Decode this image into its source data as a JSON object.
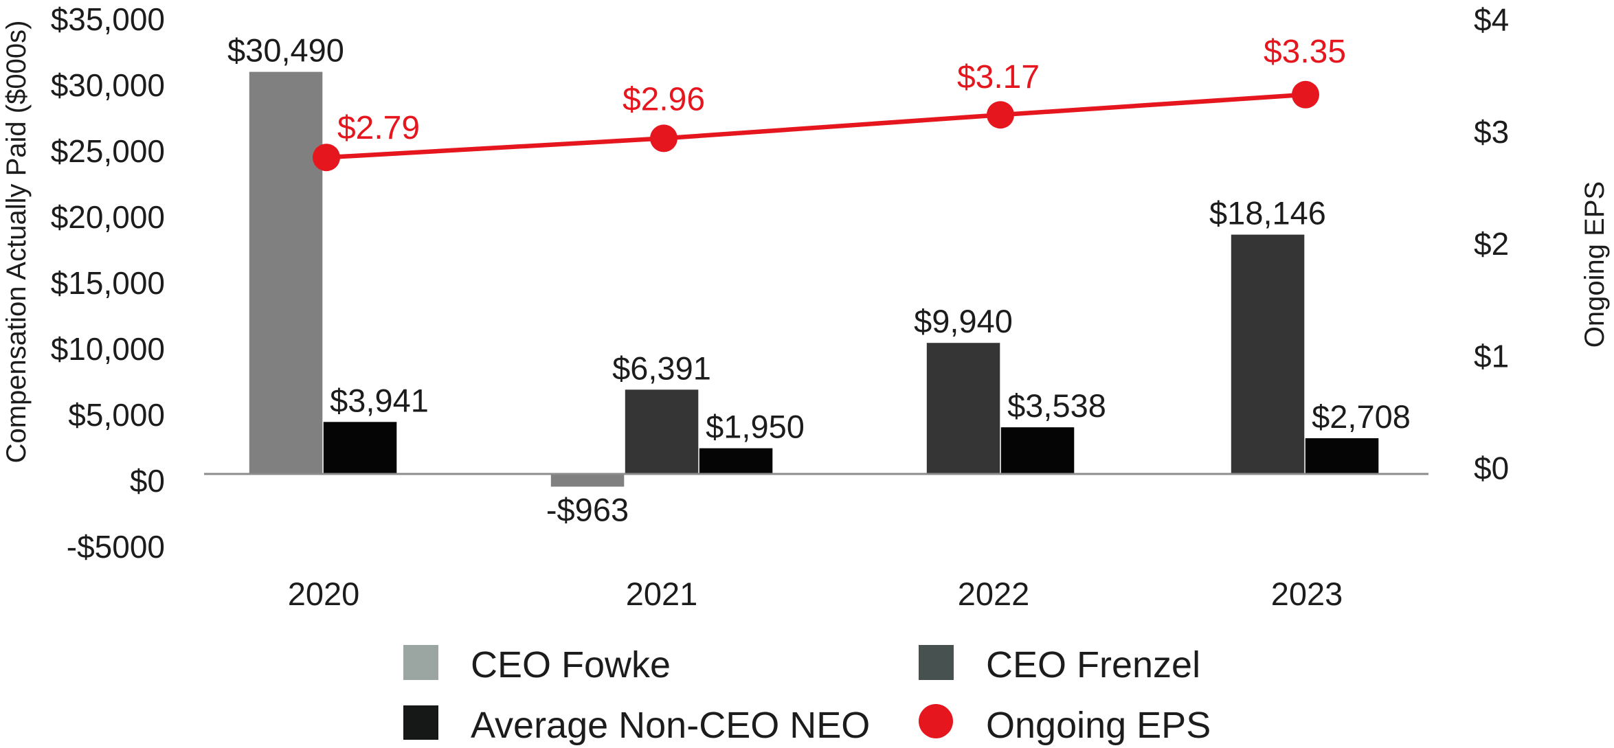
{
  "chart_data": {
    "type": "bar",
    "categories": [
      "2020",
      "2021",
      "2022",
      "2023"
    ],
    "ylabel": "Compensation Actually Paid ($000s)",
    "y2label": "Ongoing EPS",
    "ylim": [
      -5000,
      35000
    ],
    "y2lim": [
      0,
      4
    ],
    "yticks": [
      {
        "value": 35000,
        "label": "$35,000"
      },
      {
        "value": 30000,
        "label": "$30,000"
      },
      {
        "value": 25000,
        "label": "$25,000"
      },
      {
        "value": 20000,
        "label": "$20,000"
      },
      {
        "value": 15000,
        "label": "$15,000"
      },
      {
        "value": 10000,
        "label": "$10,000"
      },
      {
        "value": 5000,
        "label": "$5,000"
      },
      {
        "value": 0,
        "label": "$0"
      },
      {
        "value": -5000,
        "label": "-$5000"
      }
    ],
    "y2ticks": [
      {
        "value": 4,
        "label": "$4"
      },
      {
        "value": 3,
        "label": "$3"
      },
      {
        "value": 2,
        "label": "$2"
      },
      {
        "value": 1,
        "label": "$1"
      },
      {
        "value": 0,
        "label": "$0"
      }
    ],
    "series": [
      {
        "name": "CEO Fowke",
        "values": [
          30490,
          -963,
          null,
          null
        ],
        "labels": [
          "$30,490",
          "-$963",
          null,
          null
        ],
        "color": "#808080",
        "legend_color": "#9ba5a2"
      },
      {
        "name": "CEO Frenzel",
        "values": [
          null,
          6391,
          9940,
          18146
        ],
        "labels": [
          null,
          "$6,391",
          "$9,940",
          "$18,146"
        ],
        "color": "#353535",
        "legend_color": "#47514f"
      },
      {
        "name": "Average Non-CEO NEO",
        "values": [
          3941,
          1950,
          3538,
          2708
        ],
        "labels": [
          "$3,941",
          "$1,950",
          "$3,538",
          "$2,708"
        ],
        "color": "#050505",
        "legend_color": "#151817"
      }
    ],
    "secondary_series": {
      "name": "Ongoing EPS",
      "values": [
        2.79,
        2.96,
        3.17,
        3.35
      ],
      "labels": [
        "$2.79",
        "$2.96",
        "$3.17",
        "$3.35"
      ],
      "color": "#e5161d"
    },
    "legend_placement": "bottom",
    "colors": {
      "axis_line": "#8c8c8c"
    }
  }
}
